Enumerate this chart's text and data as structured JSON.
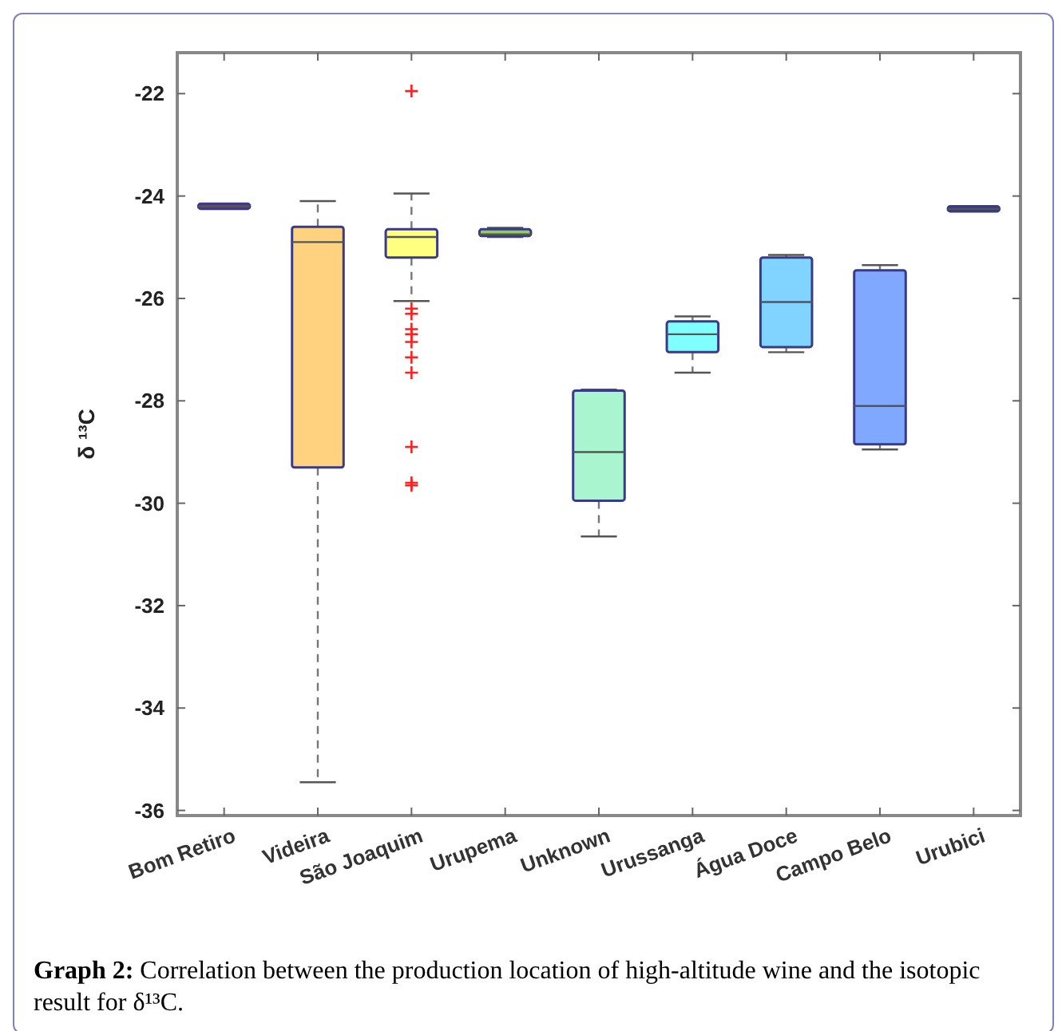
{
  "chart_data": {
    "type": "box",
    "ylabel": "δ ¹³C",
    "categories": [
      "Bom Retiro",
      "Videira",
      "São Joaquim",
      "Urupema",
      "Unknown",
      "Urussanga",
      "Água Doce",
      "Campo Belo",
      "Urubici"
    ],
    "boxes": [
      {
        "low": -24.25,
        "q1": -24.25,
        "median": -24.2,
        "q3": -24.15,
        "high": -24.15
      },
      {
        "low": -35.45,
        "q1": -29.3,
        "median": -24.9,
        "q3": -24.6,
        "high": -24.1
      },
      {
        "low": -26.05,
        "q1": -25.2,
        "median": -24.8,
        "q3": -24.65,
        "high": -23.95,
        "outliers": [
          -21.95,
          -26.2,
          -26.3,
          -26.6,
          -26.7,
          -26.85,
          -27.15,
          -27.45,
          -28.9,
          -29.6,
          -29.65
        ]
      },
      {
        "low": -24.8,
        "q1": -24.78,
        "median": -24.75,
        "q3": -24.65,
        "high": -24.62
      },
      {
        "low": -30.65,
        "q1": -29.95,
        "median": -29.0,
        "q3": -27.8,
        "high": -27.78
      },
      {
        "low": -27.45,
        "q1": -27.05,
        "median": -26.7,
        "q3": -26.45,
        "high": -26.35
      },
      {
        "low": -27.05,
        "q1": -26.95,
        "median": -26.07,
        "q3": -25.2,
        "high": -25.15
      },
      {
        "low": -28.95,
        "q1": -28.85,
        "median": -28.1,
        "q3": -25.45,
        "high": -25.35
      },
      {
        "low": -24.3,
        "q1": -24.3,
        "median": -24.25,
        "q3": -24.2,
        "high": -24.2
      }
    ],
    "colors": [
      "#8b3a3a",
      "#ffd280",
      "#ffff80",
      "#8fce5a",
      "#a8f5d0",
      "#80ffff",
      "#80d4ff",
      "#80a8ff",
      "#3030a0"
    ],
    "ylim": [
      -36.1,
      -21.2
    ],
    "yticks": [
      -36,
      -34,
      -32,
      -30,
      -28,
      -26,
      -24,
      -22
    ],
    "grid": false,
    "annotations": [
      "Graph 2: Correlation between the production location of high-altitude wine and the isotopic result for δ¹³C."
    ]
  }
}
